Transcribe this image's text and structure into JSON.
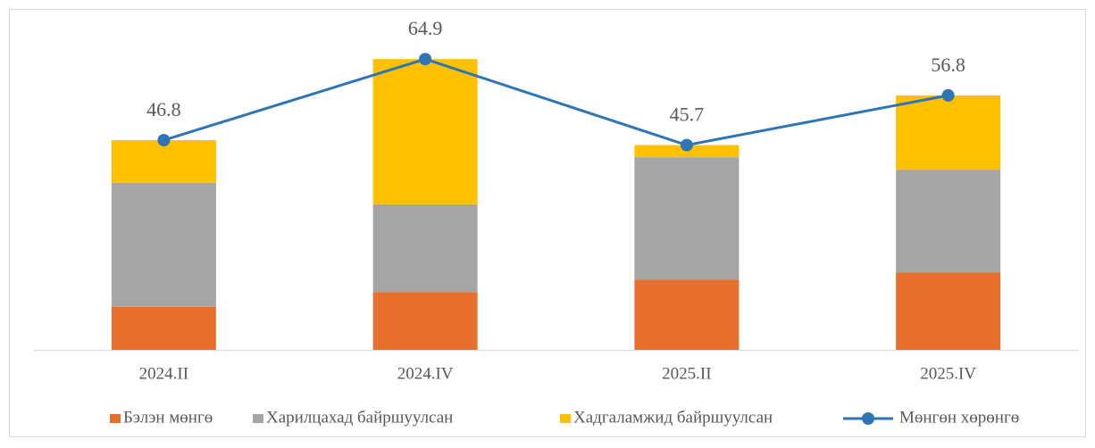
{
  "chart_data": {
    "type": "stacked_bar_line",
    "categories": [
      "2024.II",
      "2024.IV",
      "2025.II",
      "2025.IV"
    ],
    "series": [
      {
        "name": "Бэлэн мөнгө",
        "color": "#e8702f",
        "values": [
          9.6,
          12.9,
          15.7,
          17.3
        ]
      },
      {
        "name": "Харилцахад байршуулсан",
        "color": "#a5a5a5",
        "values": [
          27.7,
          19.6,
          27.3,
          22.9
        ]
      },
      {
        "name": "Хадгаламжид байршуулсан",
        "color": "#ffc000",
        "values": [
          9.5,
          32.4,
          2.7,
          16.6
        ]
      },
      {
        "name": "Мөнгөн хөрөнгө",
        "color": "#2e75b6",
        "type": "line",
        "values": [
          46.8,
          64.9,
          45.7,
          56.8
        ]
      }
    ],
    "ylim": [
      0,
      70
    ]
  }
}
